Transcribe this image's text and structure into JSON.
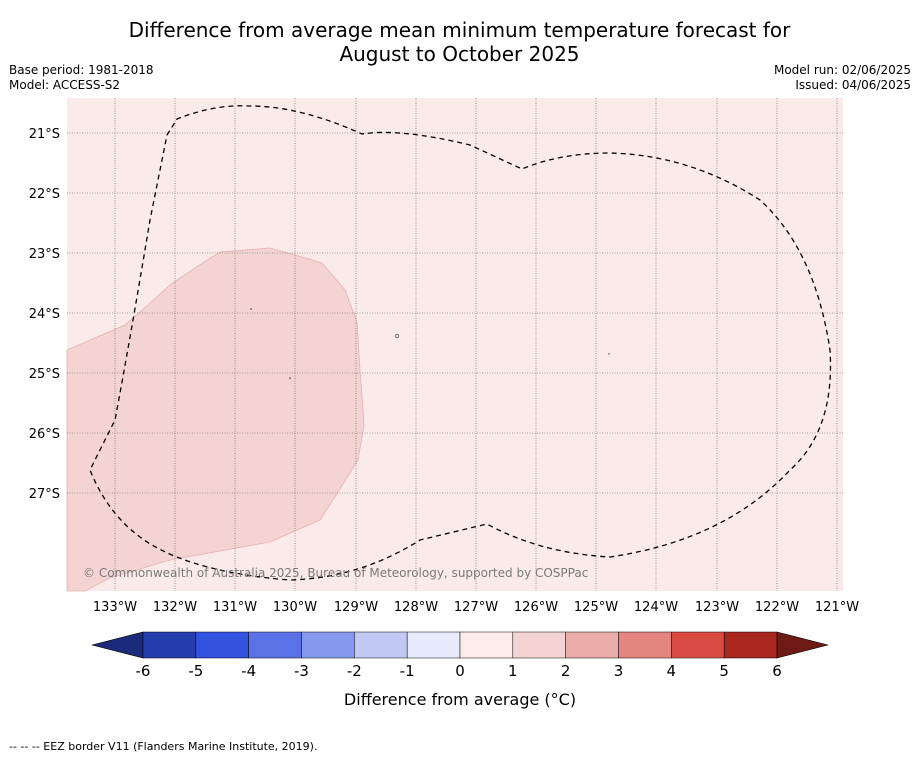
{
  "title_line1": "Difference from average mean minimum temperature forecast for",
  "title_line2": "August to October 2025",
  "base_period": "Base period: 1981-2018",
  "model": "Model: ACCESS-S2",
  "model_run": "Model run: 02/06/2025",
  "issued": "Issued: 04/06/2025",
  "copyright": "© Commonwealth of Australia 2025, Bureau of Meteorology, supported by COSPPac",
  "footer": "--  --  -- EEZ border V11 (Flanders Marine Institute, 2019).",
  "lon_ticks": [
    "133°W",
    "132°W",
    "131°W",
    "130°W",
    "129°W",
    "128°W",
    "127°W",
    "126°W",
    "125°W",
    "124°W",
    "123°W",
    "122°W",
    "121°W"
  ],
  "lat_ticks": [
    "21°S",
    "22°S",
    "23°S",
    "24°S",
    "25°S",
    "26°S",
    "27°S"
  ],
  "colorbar": {
    "label": "Difference from average (°C)",
    "ticks": [
      "-6",
      "-5",
      "-4",
      "-3",
      "-2",
      "-1",
      "0",
      "1",
      "2",
      "3",
      "4",
      "5",
      "6"
    ],
    "colors": {
      "below_min": "#1b2a7a",
      "bins": [
        "#253dad",
        "#3352e0",
        "#5a72e6",
        "#8499ec",
        "#c1c9f3",
        "#e8ebfb",
        "#fbecea",
        "#f4d4d3",
        "#eaada9",
        "#e5857f",
        "#d94b42",
        "#a9271f"
      ],
      "above_max": "#6e1a14"
    }
  },
  "map_colors": {
    "background": "#fbeaea",
    "anomaly_1_2": "#f4d4d3",
    "eez_border": "#000000"
  }
}
